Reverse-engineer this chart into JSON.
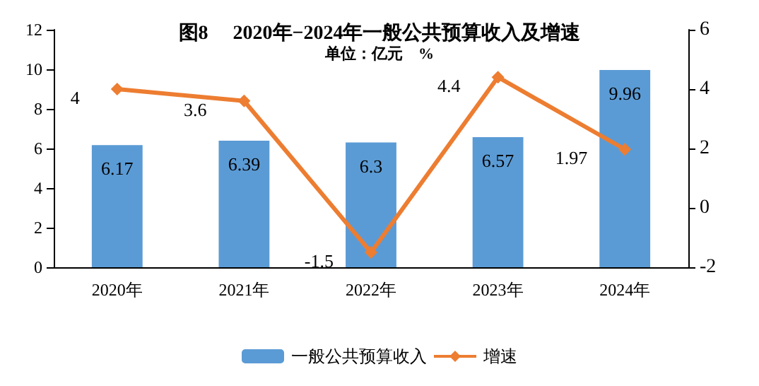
{
  "chart_data": {
    "type": "bar",
    "title": "图8　 2020年−2024年一般公共预算收入及增速",
    "subtitle": "单位：亿元　%",
    "categories": [
      "2020年",
      "2021年",
      "2022年",
      "2023年",
      "2024年"
    ],
    "series": [
      {
        "name": "一般公共预算收入",
        "color": "#5b9bd5",
        "values": [
          6.17,
          6.39,
          6.3,
          6.57,
          9.96
        ]
      },
      {
        "name": "增速",
        "type": "line",
        "axis": "y2",
        "color": "#ed7d31",
        "marker": "diamond",
        "values": [
          4,
          3.6,
          -1.5,
          4.4,
          1.97
        ]
      }
    ],
    "ylim": [
      0,
      12
    ],
    "yticks": [
      0,
      2,
      4,
      6,
      8,
      10,
      12
    ],
    "y2lim": [
      -2,
      6
    ],
    "y2ticks": [
      -2,
      0,
      2,
      4,
      6
    ],
    "data_labels": true,
    "legend": "bottom",
    "grid": false
  }
}
